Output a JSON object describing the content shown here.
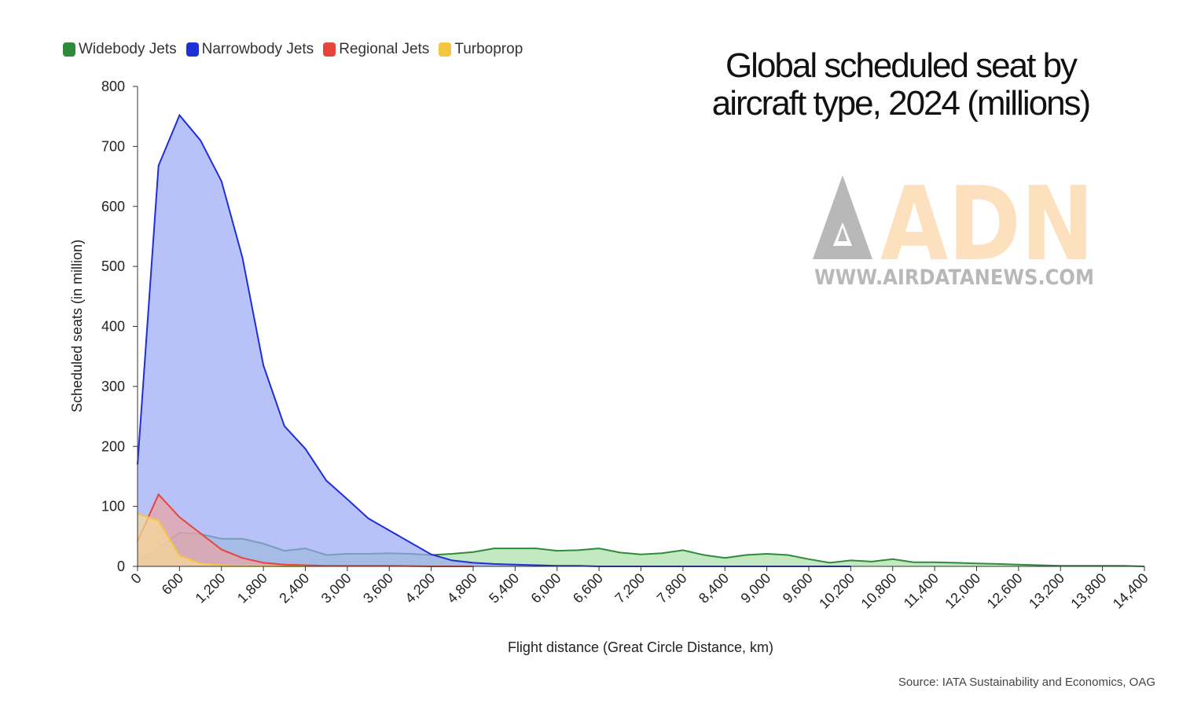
{
  "chart_data": {
    "type": "area",
    "title": "Global scheduled seat by aircraft type, 2024 (millions)",
    "xlabel": "Flight distance (Great Circle Distance, km)",
    "ylabel": "Scheduled seats (in million)",
    "source": "Source: IATA Sustainability and Economics, OAG",
    "xlim": [
      0,
      14400
    ],
    "ylim": [
      0,
      800
    ],
    "x_ticks": [
      0,
      600,
      1200,
      1800,
      2400,
      3000,
      3600,
      4200,
      4800,
      5400,
      6000,
      6600,
      7200,
      7800,
      8400,
      9000,
      9600,
      10200,
      10800,
      11400,
      12000,
      12600,
      13200,
      13800,
      14400
    ],
    "x_tick_labels": [
      "0",
      "600",
      "1,200",
      "1,800",
      "2,400",
      "3,000",
      "3,600",
      "4,200",
      "4,800",
      "5,400",
      "6,000",
      "6,600",
      "7,200",
      "7,800",
      "8,400",
      "9,000",
      "9,600",
      "10,200",
      "10,800",
      "11,400",
      "12,000",
      "12,600",
      "13,200",
      "13,800",
      "14,400"
    ],
    "y_ticks": [
      0,
      100,
      200,
      300,
      400,
      500,
      600,
      700,
      800
    ],
    "y_tick_labels": [
      "0",
      "100",
      "200",
      "300",
      "400",
      "500",
      "600",
      "700",
      "800"
    ],
    "series": [
      {
        "name": "Widebody Jets",
        "color": "#2e8b3a",
        "fill": "#a8e0a8",
        "x": [
          0,
          300,
          600,
          900,
          1200,
          1500,
          1800,
          2100,
          2400,
          2700,
          3000,
          3300,
          3600,
          3900,
          4200,
          4500,
          4800,
          5100,
          5400,
          5700,
          6000,
          6300,
          6600,
          6900,
          7200,
          7500,
          7800,
          8100,
          8400,
          8700,
          9000,
          9300,
          9600,
          9900,
          10200,
          10500,
          10800,
          11100,
          11400,
          11700,
          12000,
          12300,
          12600,
          12900,
          13200,
          13500,
          13800,
          14100,
          14400
        ],
        "values": [
          8,
          30,
          56,
          54,
          46,
          46,
          38,
          26,
          30,
          19,
          21,
          21,
          22,
          21,
          19,
          21,
          24,
          30,
          30,
          30,
          26,
          27,
          30,
          23,
          20,
          22,
          27,
          19,
          14,
          19,
          21,
          19,
          12,
          6,
          10,
          8,
          12,
          7,
          7,
          6,
          5,
          4,
          3,
          2,
          1,
          1,
          1,
          1,
          0
        ]
      },
      {
        "name": "Narrowbody Jets",
        "color": "#1f2fd6",
        "fill": "#9aa6f5",
        "x": [
          0,
          300,
          600,
          900,
          1200,
          1500,
          1800,
          2100,
          2400,
          2700,
          3000,
          3300,
          3600,
          3900,
          4200,
          4500,
          4800,
          5100,
          5400,
          5700,
          6000,
          6300,
          6600,
          6900,
          7200,
          7800,
          8400,
          9000,
          9600,
          10200
        ],
        "values": [
          170,
          668,
          752,
          710,
          642,
          515,
          335,
          234,
          196,
          143,
          112,
          80,
          60,
          40,
          20,
          10,
          6,
          4,
          3,
          2,
          1,
          1,
          0,
          0,
          0,
          0,
          0,
          0,
          0,
          0
        ]
      },
      {
        "name": "Regional Jets",
        "color": "#e8453a",
        "fill": "#eda3a3",
        "x": [
          0,
          300,
          600,
          900,
          1200,
          1500,
          1800,
          2100,
          2400,
          2700,
          3000,
          3600,
          4200,
          4800
        ],
        "values": [
          42,
          120,
          82,
          55,
          28,
          14,
          6,
          3,
          2,
          1,
          1,
          1,
          0,
          0
        ]
      },
      {
        "name": "Turboprop",
        "color": "#f5c542",
        "fill": "#f7dc95",
        "x": [
          0,
          300,
          600,
          900,
          1200,
          1500,
          1800,
          2100,
          2400
        ],
        "values": [
          88,
          76,
          18,
          5,
          2,
          1,
          1,
          0,
          0
        ]
      }
    ]
  },
  "watermark": {
    "brand": "ADN",
    "url": "WWW.AIRDATANEWS.COM"
  }
}
